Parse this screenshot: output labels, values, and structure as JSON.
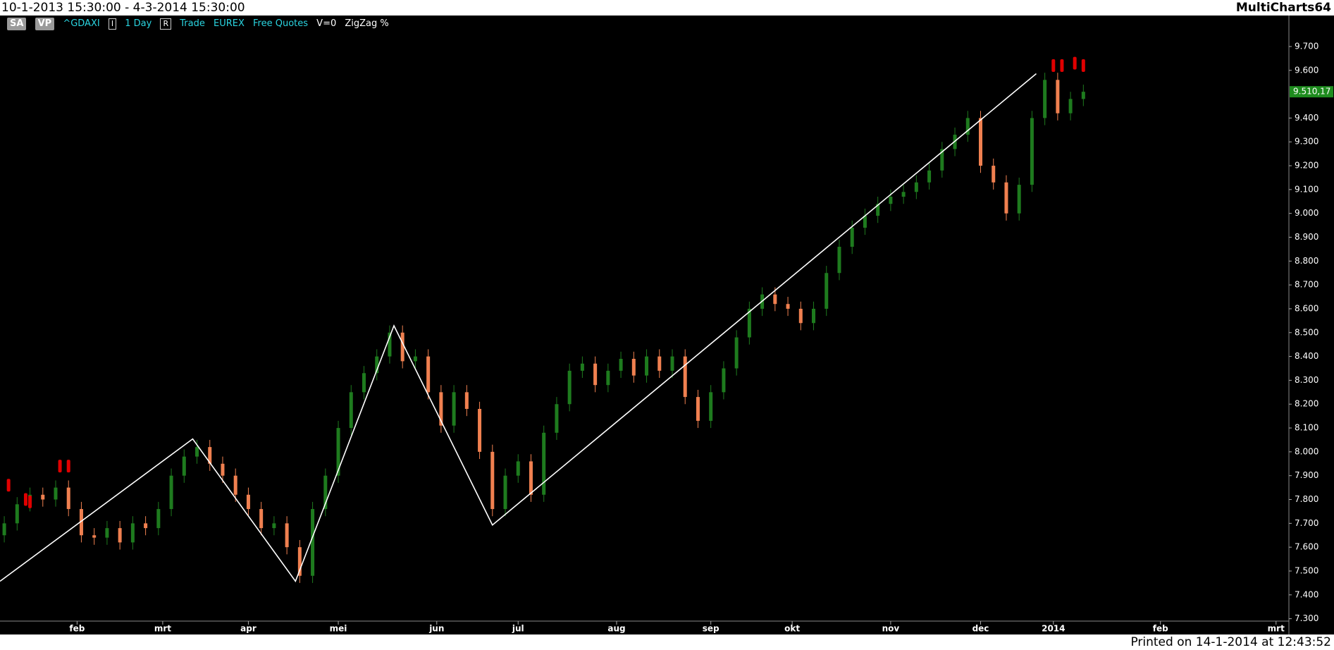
{
  "header": {
    "range": "10-1-2013 15:30:00 - 4-3-2014 15:30:00",
    "app": "MultiCharts64"
  },
  "toolbar": [
    "SA",
    "VP",
    "^GDAXI",
    "I",
    "1 Day",
    "R",
    "Trade",
    "EUREX",
    "Free Quotes",
    "V=0",
    "ZigZag %"
  ],
  "footer": "Printed on 14-1-2014 at 12:43:52",
  "chart_data": {
    "type": "candlestick",
    "up_color": "#1e7b1e",
    "down_color": "#f08050",
    "x": [
      0,
      3,
      6,
      9,
      12,
      15,
      18,
      21,
      24,
      27,
      30,
      33,
      36,
      39,
      42,
      45,
      48,
      51,
      54,
      57,
      60,
      63,
      66,
      69,
      72,
      75,
      78,
      81,
      84,
      87,
      90,
      93,
      96,
      99,
      102,
      105,
      108,
      111,
      114,
      117,
      120,
      123,
      126,
      129,
      132,
      135,
      138,
      141,
      144,
      147,
      150,
      153,
      156,
      159,
      162,
      165,
      168,
      171,
      174,
      177,
      180,
      183,
      186,
      189,
      192,
      195,
      198,
      201,
      204,
      207,
      210,
      213,
      216,
      219,
      222,
      225,
      228,
      231,
      234,
      237,
      240,
      243,
      246,
      249,
      252
    ],
    "open": [
      7650,
      7700,
      7780,
      7820,
      7800,
      7850,
      7760,
      7650,
      7640,
      7680,
      7620,
      7700,
      7680,
      7760,
      7900,
      7980,
      8020,
      7950,
      7900,
      7820,
      7760,
      7680,
      7700,
      7600,
      7480,
      7760,
      7900,
      8100,
      8250,
      8330,
      8400,
      8500,
      8380,
      8400,
      8250,
      8110,
      8250,
      8180,
      8000,
      7760,
      7900,
      7960,
      7820,
      8080,
      8200,
      8340,
      8370,
      8280,
      8340,
      8390,
      8320,
      8400,
      8340,
      8400,
      8230,
      8130,
      8250,
      8350,
      8480,
      8600,
      8660,
      8620,
      8600,
      8540,
      8600,
      8750,
      8860,
      8940,
      8990,
      9040,
      9070,
      9090,
      9130,
      9180,
      9270,
      9330,
      9400,
      9200,
      9130,
      9000,
      9120,
      9400,
      9560,
      9420,
      9480
    ],
    "high": [
      7730,
      7810,
      7850,
      7850,
      7880,
      7880,
      7790,
      7680,
      7710,
      7710,
      7730,
      7730,
      7790,
      7930,
      8010,
      8050,
      8050,
      7980,
      7930,
      7850,
      7790,
      7730,
      7730,
      7630,
      7790,
      7930,
      8130,
      8280,
      8360,
      8430,
      8530,
      8530,
      8430,
      8430,
      8280,
      8280,
      8280,
      8210,
      8030,
      7930,
      7990,
      7990,
      8110,
      8230,
      8370,
      8400,
      8400,
      8370,
      8420,
      8420,
      8430,
      8430,
      8430,
      8430,
      8260,
      8280,
      8380,
      8510,
      8630,
      8690,
      8690,
      8650,
      8630,
      8630,
      8780,
      8890,
      8970,
      9020,
      9070,
      9100,
      9120,
      9160,
      9210,
      9300,
      9360,
      9430,
      9430,
      9230,
      9160,
      9150,
      9430,
      9590,
      9590,
      9510,
      9540
    ],
    "low": [
      7620,
      7670,
      7750,
      7770,
      7770,
      7730,
      7620,
      7610,
      7610,
      7590,
      7590,
      7650,
      7650,
      7730,
      7870,
      7950,
      7920,
      7870,
      7790,
      7730,
      7650,
      7650,
      7570,
      7450,
      7450,
      7730,
      7870,
      8070,
      8220,
      8300,
      8370,
      8350,
      8350,
      8220,
      8080,
      8080,
      8150,
      7970,
      7730,
      7730,
      7870,
      7790,
      7790,
      8050,
      8170,
      8310,
      8250,
      8250,
      8310,
      8290,
      8290,
      8310,
      8310,
      8200,
      8100,
      8100,
      8220,
      8320,
      8450,
      8570,
      8590,
      8570,
      8510,
      8510,
      8570,
      8720,
      8830,
      8910,
      8960,
      9010,
      9040,
      9060,
      9100,
      9150,
      9240,
      9300,
      9170,
      9100,
      8970,
      8970,
      9090,
      9370,
      9390,
      9390,
      9450
    ],
    "close": [
      7700,
      7780,
      7820,
      7800,
      7850,
      7760,
      7650,
      7640,
      7680,
      7620,
      7700,
      7680,
      7760,
      7900,
      7980,
      8020,
      7950,
      7900,
      7820,
      7760,
      7680,
      7700,
      7600,
      7480,
      7760,
      7900,
      8100,
      8250,
      8330,
      8400,
      8500,
      8380,
      8400,
      8250,
      8110,
      8250,
      8180,
      8000,
      7760,
      7900,
      7960,
      7820,
      8080,
      8200,
      8340,
      8370,
      8280,
      8340,
      8390,
      8320,
      8400,
      8340,
      8400,
      8230,
      8130,
      8250,
      8350,
      8480,
      8600,
      8660,
      8620,
      8600,
      8540,
      8600,
      8750,
      8860,
      8940,
      8990,
      9040,
      9070,
      9090,
      9130,
      9180,
      9270,
      9330,
      9400,
      9200,
      9130,
      9000,
      9120,
      9400,
      9560,
      9420,
      9480,
      9510.17
    ],
    "zigzag": {
      "color": "#ffffff",
      "x": [
        -1,
        44,
        68,
        91,
        114,
        241
      ],
      "values": [
        7457,
        8054,
        7457,
        8529,
        7693,
        9586
      ]
    },
    "markers": {
      "color": "#e00000",
      "x": [
        1,
        5,
        6,
        13,
        15,
        245,
        247,
        250,
        252
      ],
      "values": [
        7860,
        7800,
        7790,
        7940,
        7940,
        9620,
        9620,
        9630,
        9620
      ]
    },
    "last_price": {
      "value": 9510.17,
      "label": "9.510,17",
      "color": "#1e8c1e"
    },
    "xlim": [
      -1,
      300
    ],
    "ylim": [
      7290,
      9830
    ],
    "xticks": [
      {
        "value": 17,
        "label": "feb"
      },
      {
        "value": 37,
        "label": "mrt"
      },
      {
        "value": 57,
        "label": "apr"
      },
      {
        "value": 78,
        "label": "mei"
      },
      {
        "value": 101,
        "label": "jun"
      },
      {
        "value": 120,
        "label": "jul"
      },
      {
        "value": 143,
        "label": "aug"
      },
      {
        "value": 165,
        "label": "sep"
      },
      {
        "value": 184,
        "label": "okt"
      },
      {
        "value": 207,
        "label": "nov"
      },
      {
        "value": 228,
        "label": "dec"
      },
      {
        "value": 245,
        "label": "2014"
      },
      {
        "value": 270,
        "label": "feb"
      },
      {
        "value": 297,
        "label": "mrt"
      }
    ],
    "yticks": [
      {
        "value": 7300,
        "label": "7.300"
      },
      {
        "value": 7400,
        "label": "7.400"
      },
      {
        "value": 7500,
        "label": "7.500"
      },
      {
        "value": 7600,
        "label": "7.600"
      },
      {
        "value": 7700,
        "label": "7.700"
      },
      {
        "value": 7800,
        "label": "7.800"
      },
      {
        "value": 7900,
        "label": "7.900"
      },
      {
        "value": 8000,
        "label": "8.000"
      },
      {
        "value": 8100,
        "label": "8.100"
      },
      {
        "value": 8200,
        "label": "8.200"
      },
      {
        "value": 8300,
        "label": "8.300"
      },
      {
        "value": 8400,
        "label": "8.400"
      },
      {
        "value": 8500,
        "label": "8.500"
      },
      {
        "value": 8600,
        "label": "8.600"
      },
      {
        "value": 8700,
        "label": "8.700"
      },
      {
        "value": 8800,
        "label": "8.800"
      },
      {
        "value": 8900,
        "label": "8.900"
      },
      {
        "value": 9000,
        "label": "9.000"
      },
      {
        "value": 9100,
        "label": "9.100"
      },
      {
        "value": 9200,
        "label": "9.200"
      },
      {
        "value": 9300,
        "label": "9.300"
      },
      {
        "value": 9400,
        "label": "9.400"
      },
      {
        "value": 9600,
        "label": "9.600"
      },
      {
        "value": 9700,
        "label": "9.700"
      }
    ]
  }
}
